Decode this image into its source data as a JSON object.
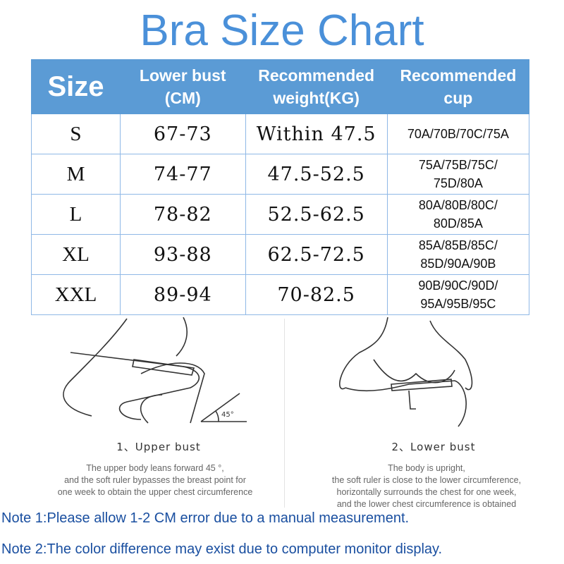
{
  "title": "Bra Size Chart",
  "colors": {
    "title": "#4a90d9",
    "header_bg": "#5b9bd5",
    "note": "#1a4fa0"
  },
  "table": {
    "headers": [
      {
        "line1": "Size",
        "line2": ""
      },
      {
        "line1": "Lower bust",
        "line2": "(CM)"
      },
      {
        "line1": "Recommended",
        "line2": "weight(KG)"
      },
      {
        "line1": "Recommended",
        "line2": "cup"
      }
    ],
    "rows": [
      {
        "size": "S",
        "lower_bust": "67-73",
        "weight": "Within 47.5",
        "cup1": "70A/70B/70C/75A",
        "cup2": ""
      },
      {
        "size": "M",
        "lower_bust": "74-77",
        "weight": "47.5-52.5",
        "cup1": "75A/75B/75C/",
        "cup2": "75D/80A"
      },
      {
        "size": "L",
        "lower_bust": "78-82",
        "weight": "52.5-62.5",
        "cup1": "80A/80B/80C/",
        "cup2": "80D/85A"
      },
      {
        "size": "XL",
        "lower_bust": "93-88",
        "weight": "62.5-72.5",
        "cup1": "85A/85B/85C/",
        "cup2": "85D/90A/90B"
      },
      {
        "size": "XXL",
        "lower_bust": "89-94",
        "weight": "70-82.5",
        "cup1": "90B/90C/90D/",
        "cup2": "95A/95B/95C"
      }
    ]
  },
  "steps": [
    {
      "title": "1、Upper bust",
      "angle": "45°",
      "desc": [
        "The upper body leans forward 45 °,",
        "and the soft ruler bypasses the breast point for",
        "one week to obtain the upper chest circumference"
      ]
    },
    {
      "title": "2、Lower bust",
      "desc": [
        "The body is upright,",
        "the soft ruler is close to the lower circumference,",
        "horizontally surrounds the chest for one week,",
        "and the lower chest circumference is obtained"
      ]
    }
  ],
  "notes": [
    "Note 1:Please allow 1-2 CM error due to a manual measurement.",
    "Note 2:The color difference may exist due to computer monitor display."
  ]
}
